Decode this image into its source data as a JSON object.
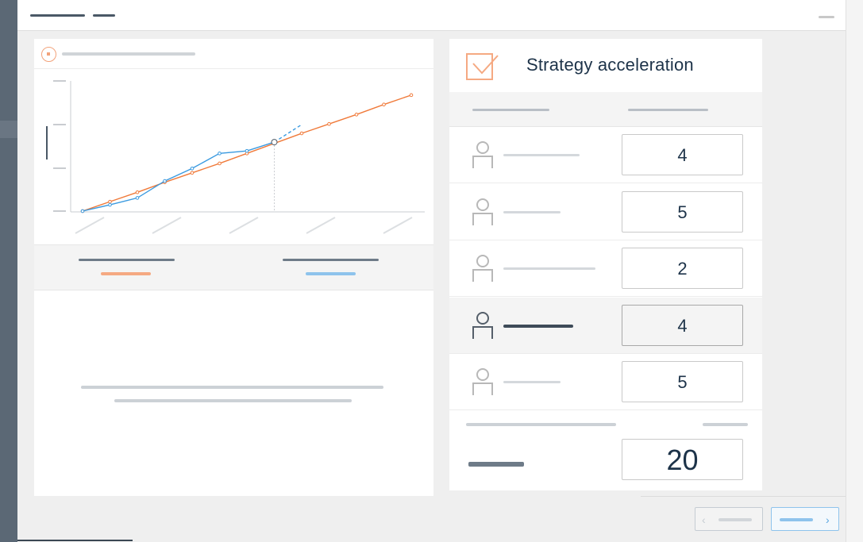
{
  "panel": {
    "title": "Strategy acceleration",
    "rows": [
      {
        "value": "4",
        "active": false
      },
      {
        "value": "5",
        "active": false
      },
      {
        "value": "2",
        "active": false
      },
      {
        "value": "4",
        "active": true
      },
      {
        "value": "5",
        "active": false
      }
    ],
    "total": "20"
  },
  "colors": {
    "accent_orange": "#f07a3a",
    "accent_blue": "#3a9ae0",
    "text_dark": "#1d3349"
  },
  "icons": {
    "header": "radio-target-icon",
    "panel": "checkbox-check-icon",
    "person": "person-icon",
    "prev": "chevron-left-icon",
    "next": "chevron-right-icon"
  },
  "chart_data": {
    "type": "line",
    "series": [
      {
        "color": "#f07a3a",
        "x": [
          0,
          1,
          2,
          3,
          4,
          5,
          6,
          7,
          8,
          9,
          10,
          11,
          12
        ],
        "values": [
          0,
          0.75,
          1.5,
          2.3,
          3.05,
          3.8,
          4.6,
          5.4,
          6.2,
          6.95,
          7.7,
          8.5,
          9.25
        ]
      },
      {
        "color": "#3a9ae0",
        "x": [
          0,
          1,
          2,
          3,
          4,
          5,
          6,
          7
        ],
        "values": [
          0,
          0.5,
          1.05,
          2.4,
          3.4,
          4.6,
          4.8,
          5.5
        ]
      }
    ],
    "projection": {
      "color": "#3a9ae0",
      "x": [
        7,
        8
      ],
      "values": [
        5.5,
        6.9
      ]
    },
    "highlight_x": 7
  }
}
